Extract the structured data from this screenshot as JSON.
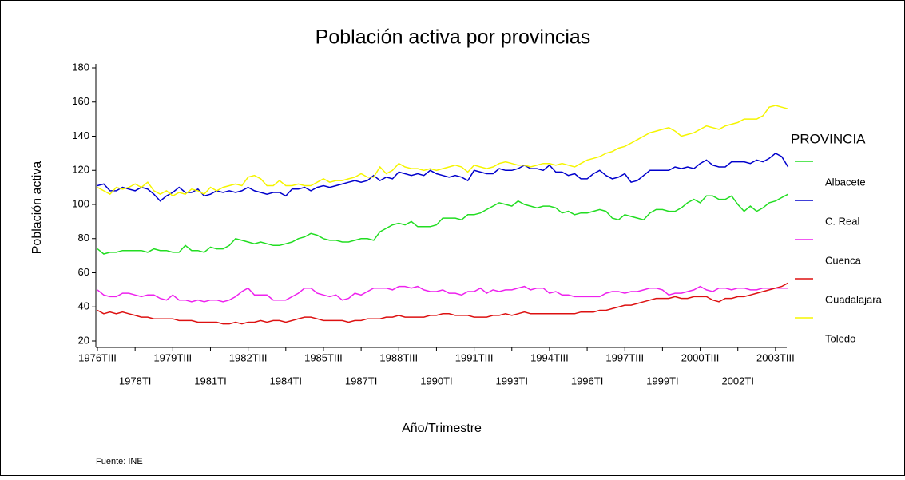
{
  "chart_data": {
    "type": "line",
    "title": "Población activa por provincias",
    "y_label": "Población activa",
    "x_label": "Año/Trimestre",
    "legend_title": "PROVINCIA",
    "source": "Fuente: INE",
    "categories": [
      "1976TIII",
      null,
      null,
      null,
      null,
      null,
      "1978TI",
      null,
      null,
      null,
      null,
      null,
      "1979TIII",
      null,
      null,
      null,
      null,
      null,
      "1981TI",
      null,
      null,
      null,
      null,
      null,
      "1982TIII",
      null,
      null,
      null,
      null,
      null,
      "1984TI",
      null,
      null,
      null,
      null,
      null,
      "1985TIII",
      null,
      null,
      null,
      null,
      null,
      "1987TI",
      null,
      null,
      null,
      null,
      null,
      "1988TIII",
      null,
      null,
      null,
      null,
      null,
      "1990TI",
      null,
      null,
      null,
      null,
      null,
      "1991TIII",
      null,
      null,
      null,
      null,
      null,
      "1993TI",
      null,
      null,
      null,
      null,
      null,
      "1994TIII",
      null,
      null,
      null,
      null,
      null,
      "1996TI",
      null,
      null,
      null,
      null,
      null,
      "1997TIII",
      null,
      null,
      null,
      null,
      null,
      "1999TI",
      null,
      null,
      null,
      null,
      null,
      "2000TIII",
      null,
      null,
      null,
      null,
      null,
      "2002TI",
      null,
      null,
      null,
      null,
      null,
      "2003TIII",
      null,
      null
    ],
    "ylim": [
      20,
      180
    ],
    "yticks": [
      20,
      40,
      60,
      80,
      100,
      120,
      140,
      160,
      180
    ],
    "series": [
      {
        "name": "Albacete",
        "color": "#22dd22",
        "values": [
          74,
          71,
          72,
          72,
          73,
          73,
          73,
          73,
          72,
          74,
          73,
          73,
          72,
          72,
          76,
          73,
          73,
          72,
          75,
          74,
          74,
          76,
          80,
          79,
          78,
          77,
          78,
          77,
          76,
          76,
          77,
          78,
          80,
          81,
          83,
          82,
          80,
          79,
          79,
          78,
          78,
          79,
          80,
          80,
          79,
          84,
          86,
          88,
          89,
          88,
          90,
          87,
          87,
          87,
          88,
          92,
          92,
          92,
          91,
          94,
          94,
          95,
          97,
          99,
          101,
          100,
          99,
          102,
          100,
          99,
          98,
          99,
          99,
          98,
          95,
          96,
          94,
          95,
          95,
          96,
          97,
          96,
          92,
          91,
          94,
          93,
          92,
          91,
          95,
          97,
          97,
          96,
          96,
          98,
          101,
          103,
          101,
          105,
          105,
          103,
          103,
          105,
          100,
          96,
          99,
          96,
          98,
          101,
          102,
          104,
          106
        ]
      },
      {
        "name": "C. Real",
        "color": "#0000cc",
        "values": [
          111,
          112,
          108,
          108,
          110,
          109,
          108,
          110,
          109,
          106,
          102,
          105,
          107,
          110,
          107,
          107,
          109,
          105,
          106,
          108,
          107,
          108,
          107,
          108,
          110,
          108,
          107,
          106,
          107,
          107,
          105,
          109,
          109,
          110,
          108,
          110,
          111,
          110,
          111,
          112,
          113,
          114,
          113,
          114,
          117,
          114,
          116,
          115,
          119,
          118,
          117,
          118,
          117,
          120,
          118,
          117,
          116,
          117,
          116,
          114,
          120,
          119,
          118,
          118,
          121,
          120,
          120,
          121,
          123,
          121,
          121,
          120,
          123,
          119,
          119,
          117,
          118,
          115,
          115,
          118,
          120,
          117,
          115,
          116,
          118,
          113,
          114,
          117,
          120,
          120,
          120,
          120,
          122,
          121,
          122,
          121,
          124,
          126,
          123,
          122,
          122,
          125,
          125,
          125,
          124,
          126,
          125,
          127,
          130,
          128,
          122
        ]
      },
      {
        "name": "Cuenca",
        "color": "#ee22ee",
        "values": [
          50,
          47,
          46,
          46,
          48,
          48,
          47,
          46,
          47,
          47,
          45,
          44,
          47,
          44,
          44,
          43,
          44,
          43,
          44,
          44,
          43,
          44,
          46,
          49,
          51,
          47,
          47,
          47,
          44,
          44,
          44,
          46,
          48,
          51,
          51,
          48,
          47,
          46,
          47,
          44,
          45,
          48,
          47,
          49,
          51,
          51,
          51,
          50,
          52,
          52,
          51,
          52,
          50,
          49,
          49,
          50,
          48,
          48,
          47,
          49,
          49,
          51,
          48,
          50,
          49,
          50,
          50,
          51,
          52,
          50,
          51,
          51,
          48,
          49,
          47,
          47,
          46,
          46,
          46,
          46,
          46,
          48,
          49,
          49,
          48,
          49,
          49,
          50,
          51,
          51,
          50,
          47,
          48,
          48,
          49,
          50,
          52,
          50,
          49,
          51,
          51,
          50,
          51,
          51,
          50,
          50,
          51,
          51,
          51,
          51,
          51
        ]
      },
      {
        "name": "Guadalajara",
        "color": "#dd1111",
        "values": [
          38,
          36,
          37,
          36,
          37,
          36,
          35,
          34,
          34,
          33,
          33,
          33,
          33,
          32,
          32,
          32,
          31,
          31,
          31,
          31,
          30,
          30,
          31,
          30,
          31,
          31,
          32,
          31,
          32,
          32,
          31,
          32,
          33,
          34,
          34,
          33,
          32,
          32,
          32,
          32,
          31,
          32,
          32,
          33,
          33,
          33,
          34,
          34,
          35,
          34,
          34,
          34,
          34,
          35,
          35,
          36,
          36,
          35,
          35,
          35,
          34,
          34,
          34,
          35,
          35,
          36,
          35,
          36,
          37,
          36,
          36,
          36,
          36,
          36,
          36,
          36,
          36,
          37,
          37,
          37,
          38,
          38,
          39,
          40,
          41,
          41,
          42,
          43,
          44,
          45,
          45,
          45,
          46,
          45,
          45,
          46,
          46,
          46,
          44,
          43,
          45,
          45,
          46,
          46,
          47,
          48,
          49,
          50,
          51,
          52,
          54
        ]
      },
      {
        "name": "Toledo",
        "color": "#f5f500",
        "values": [
          110,
          108,
          106,
          110,
          109,
          110,
          112,
          110,
          113,
          108,
          106,
          108,
          105,
          107,
          106,
          109,
          108,
          106,
          110,
          108,
          110,
          111,
          112,
          111,
          116,
          117,
          115,
          111,
          111,
          114,
          111,
          111,
          112,
          111,
          111,
          113,
          115,
          113,
          114,
          114,
          115,
          116,
          118,
          116,
          116,
          122,
          118,
          120,
          124,
          122,
          121,
          121,
          120,
          121,
          120,
          121,
          122,
          123,
          122,
          119,
          123,
          122,
          121,
          122,
          124,
          125,
          124,
          123,
          123,
          122,
          123,
          124,
          124,
          123,
          124,
          123,
          122,
          124,
          126,
          127,
          128,
          130,
          131,
          133,
          134,
          136,
          138,
          140,
          142,
          143,
          144,
          145,
          143,
          140,
          141,
          142,
          144,
          146,
          145,
          144,
          146,
          147,
          148,
          150,
          150,
          150,
          152,
          157,
          158,
          157,
          156
        ]
      }
    ]
  }
}
